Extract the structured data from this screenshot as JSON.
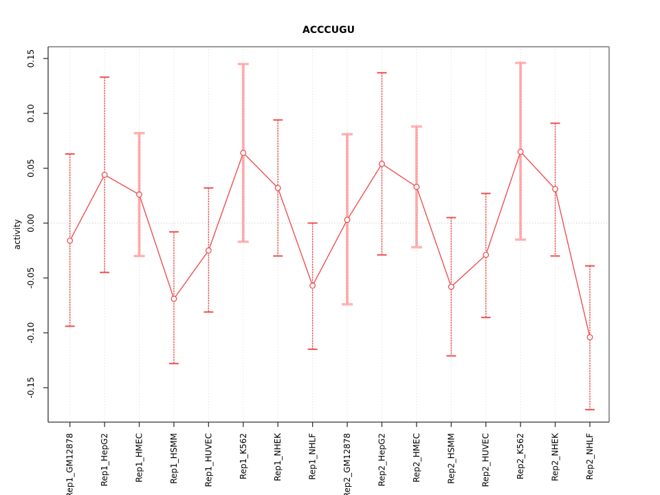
{
  "chart_data": {
    "type": "line",
    "title": "ACCCUGU",
    "ylabel": "activity",
    "xlabel": "",
    "categories": [
      "Rep1_GM12878",
      "Rep1_HepG2",
      "Rep1_HMEC",
      "Rep1_HSMM",
      "Rep1_HUVEC",
      "Rep1_K562",
      "Rep1_NHEK",
      "Rep1_NHLF",
      "Rep2_GM12878",
      "Rep2_HepG2",
      "Rep2_HMEC",
      "Rep2_HSMM",
      "Rep2_HUVEC",
      "Rep2_K562",
      "Rep2_NHEK",
      "Rep2_NHLF"
    ],
    "series": [
      {
        "name": "activity",
        "values": [
          -0.016,
          0.044,
          0.026,
          -0.069,
          -0.025,
          0.064,
          0.032,
          -0.057,
          0.003,
          0.054,
          0.033,
          -0.058,
          -0.029,
          0.065,
          0.031,
          -0.104
        ],
        "error_high": [
          0.063,
          0.133,
          0.082,
          -0.008,
          0.032,
          0.145,
          0.094,
          0.0,
          0.081,
          0.137,
          0.088,
          0.005,
          0.027,
          0.146,
          0.091,
          -0.039
        ],
        "error_low": [
          -0.094,
          -0.045,
          -0.03,
          -0.128,
          -0.081,
          -0.017,
          -0.03,
          -0.115,
          -0.074,
          -0.029,
          -0.022,
          -0.121,
          -0.086,
          -0.015,
          -0.03,
          -0.17
        ]
      }
    ],
    "pale_error_bar_indices": [
      2,
      5,
      8,
      10,
      13
    ],
    "yticks": [
      0.15,
      0.1,
      0.05,
      0.0,
      -0.05,
      -0.1,
      -0.15
    ],
    "ytick_labels": [
      "0.15",
      "0.10",
      "0.05",
      "0.00",
      "-0.05",
      "-0.10",
      "-0.15"
    ],
    "ylim": [
      -0.182,
      0.161
    ],
    "zero_line": true,
    "grid": "vertical-dotted",
    "legend_position": "none",
    "colors": {
      "line": "#ee4f4f",
      "pale_bar": "#ffb3b3",
      "point_fill": "#ffffff",
      "zero_line": "#d9d9d9",
      "gridline": "#e2e2e2",
      "box_dark": "#333333",
      "box_gray": "#999999",
      "text": "#000000"
    }
  }
}
